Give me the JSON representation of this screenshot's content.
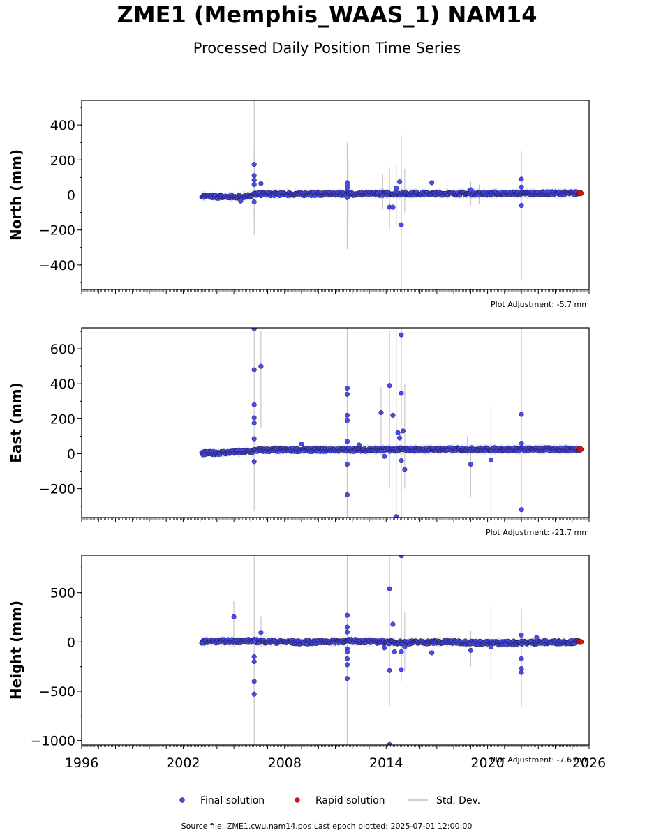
{
  "header": {
    "title": "ZME1 (Memphis_WAAS_1) NAM14",
    "subtitle": "Processed Daily Position Time Series"
  },
  "legend": {
    "final": "Final solution",
    "rapid": "Rapid solution",
    "std": "Std. Dev."
  },
  "footer": {
    "source": "Source file: ZME1.cwu.nam14.pos  Last epoch plotted: 2025-07-01 12:00:00"
  },
  "colors": {
    "final": "#4a4af0",
    "rapid": "#e01010",
    "stddev": "#bdbdbd"
  },
  "chart_data": [
    {
      "type": "scatter",
      "ylabel": "North (mm)",
      "adjustment": "Plot Adjustment: -5.7 mm",
      "xlim": [
        1996,
        2026
      ],
      "ylim": [
        -540,
        540
      ],
      "yticks": [
        -400,
        -200,
        0,
        200,
        400
      ],
      "yticklabels": [
        "−400",
        "−200",
        "0",
        "200",
        "400"
      ],
      "baseline": [
        [
          2003.1,
          -8
        ],
        [
          2005.0,
          -12
        ],
        [
          2006.0,
          -3
        ],
        [
          2006.3,
          5
        ],
        [
          2010.0,
          6
        ],
        [
          2015.0,
          8
        ],
        [
          2020.0,
          8
        ],
        [
          2025.4,
          10
        ]
      ],
      "outliers": [
        [
          2005.4,
          -35
        ],
        [
          2006.2,
          175
        ],
        [
          2006.2,
          110
        ],
        [
          2006.2,
          85
        ],
        [
          2006.2,
          60
        ],
        [
          2006.2,
          -40
        ],
        [
          2006.6,
          65
        ],
        [
          2011.7,
          70
        ],
        [
          2011.7,
          55
        ],
        [
          2011.7,
          40
        ],
        [
          2011.7,
          -15
        ],
        [
          2014.2,
          -70
        ],
        [
          2014.4,
          -70
        ],
        [
          2014.6,
          40
        ],
        [
          2014.8,
          75
        ],
        [
          2014.9,
          -170
        ],
        [
          2016.7,
          70
        ],
        [
          2019.0,
          30
        ],
        [
          2022.0,
          90
        ],
        [
          2022.0,
          45
        ],
        [
          2022.0,
          -60
        ]
      ],
      "rapid": [
        [
          2025.4,
          10
        ],
        [
          2025.5,
          10
        ]
      ],
      "stddev": [
        [
          2006.2,
          -230,
          540
        ],
        [
          2006.25,
          -150,
          270
        ],
        [
          2011.7,
          -310,
          300
        ],
        [
          2011.75,
          -150,
          200
        ],
        [
          2013.8,
          -80,
          120
        ],
        [
          2014.2,
          -200,
          160
        ],
        [
          2014.6,
          -180,
          180
        ],
        [
          2014.9,
          -540,
          340
        ],
        [
          2015.1,
          -100,
          150
        ],
        [
          2022.0,
          -490,
          250
        ],
        [
          2019.0,
          -60,
          80
        ],
        [
          2019.5,
          -50,
          60
        ]
      ]
    },
    {
      "type": "scatter",
      "ylabel": "East (mm)",
      "adjustment": "Plot Adjustment: -21.7 mm",
      "xlim": [
        1996,
        2026
      ],
      "ylim": [
        -365,
        720
      ],
      "yticks": [
        -200,
        0,
        200,
        400,
        600
      ],
      "yticklabels": [
        "−200",
        "0",
        "200",
        "400",
        "600"
      ],
      "baseline": [
        [
          2003.1,
          2
        ],
        [
          2004.0,
          5
        ],
        [
          2006.0,
          12
        ],
        [
          2006.3,
          20
        ],
        [
          2010.0,
          22
        ],
        [
          2015.0,
          24
        ],
        [
          2020.0,
          25
        ],
        [
          2025.4,
          25
        ]
      ],
      "outliers": [
        [
          2006.2,
          715
        ],
        [
          2006.2,
          480
        ],
        [
          2006.2,
          280
        ],
        [
          2006.2,
          205
        ],
        [
          2006.2,
          175
        ],
        [
          2006.2,
          85
        ],
        [
          2006.2,
          -45
        ],
        [
          2006.6,
          500
        ],
        [
          2009.0,
          55
        ],
        [
          2011.7,
          375
        ],
        [
          2011.7,
          340
        ],
        [
          2011.7,
          220
        ],
        [
          2011.7,
          190
        ],
        [
          2011.7,
          70
        ],
        [
          2011.7,
          -60
        ],
        [
          2011.7,
          -235
        ],
        [
          2012.4,
          50
        ],
        [
          2013.7,
          235
        ],
        [
          2013.9,
          -15
        ],
        [
          2014.2,
          390
        ],
        [
          2014.4,
          220
        ],
        [
          2014.6,
          -360
        ],
        [
          2014.7,
          120
        ],
        [
          2014.8,
          90
        ],
        [
          2014.9,
          680
        ],
        [
          2014.9,
          345
        ],
        [
          2014.9,
          -40
        ],
        [
          2015.1,
          -90
        ],
        [
          2015.0,
          130
        ],
        [
          2019.0,
          -60
        ],
        [
          2020.2,
          -35
        ],
        [
          2022.0,
          225
        ],
        [
          2022.0,
          60
        ],
        [
          2022.0,
          -320
        ]
      ],
      "rapid": [
        [
          2025.4,
          25
        ],
        [
          2025.5,
          25
        ]
      ],
      "stddev": [
        [
          2006.2,
          -330,
          720
        ],
        [
          2006.6,
          150,
          700
        ],
        [
          2011.7,
          -365,
          720
        ],
        [
          2013.7,
          -10,
          380
        ],
        [
          2014.2,
          -200,
          700
        ],
        [
          2014.6,
          -365,
          720
        ],
        [
          2014.9,
          -365,
          720
        ],
        [
          2015.1,
          -200,
          400
        ],
        [
          2018.8,
          -10,
          100
        ],
        [
          2019.0,
          -250,
          50
        ],
        [
          2020.2,
          -350,
          270
        ],
        [
          2022.0,
          -365,
          720
        ]
      ]
    },
    {
      "type": "scatter",
      "ylabel": "Height (mm)",
      "adjustment": "Plot Adjustment: -7.6 mm",
      "xlim": [
        1996,
        2026
      ],
      "ylim": [
        -1045,
        880
      ],
      "yticks": [
        -1000,
        -500,
        0,
        500
      ],
      "yticklabels": [
        "−1000",
        "−500",
        "0",
        "500"
      ],
      "xticks": [
        1996,
        2002,
        2008,
        2014,
        2020,
        2026
      ],
      "baseline": [
        [
          2003.1,
          5
        ],
        [
          2006.0,
          10
        ],
        [
          2009.0,
          -5
        ],
        [
          2012.0,
          10
        ],
        [
          2015.0,
          -5
        ],
        [
          2018.0,
          0
        ],
        [
          2020.0,
          -10
        ],
        [
          2025.4,
          0
        ]
      ],
      "outliers": [
        [
          2005.0,
          255
        ],
        [
          2006.2,
          -150
        ],
        [
          2006.2,
          -200
        ],
        [
          2006.2,
          -400
        ],
        [
          2006.2,
          -530
        ],
        [
          2006.2,
          0
        ],
        [
          2006.6,
          95
        ],
        [
          2011.7,
          270
        ],
        [
          2011.7,
          150
        ],
        [
          2011.7,
          100
        ],
        [
          2011.7,
          -70
        ],
        [
          2011.7,
          -100
        ],
        [
          2011.7,
          -170
        ],
        [
          2011.7,
          -230
        ],
        [
          2011.7,
          -370
        ],
        [
          2013.9,
          -60
        ],
        [
          2014.2,
          540
        ],
        [
          2014.2,
          -290
        ],
        [
          2014.2,
          -1040
        ],
        [
          2014.4,
          180
        ],
        [
          2014.5,
          -100
        ],
        [
          2014.9,
          875
        ],
        [
          2014.9,
          -100
        ],
        [
          2014.9,
          -280
        ],
        [
          2015.1,
          -50
        ],
        [
          2016.7,
          -110
        ],
        [
          2019.0,
          -85
        ],
        [
          2020.2,
          -50
        ],
        [
          2022.0,
          70
        ],
        [
          2022.0,
          -170
        ],
        [
          2022.0,
          -270
        ],
        [
          2022.0,
          -310
        ],
        [
          2022.9,
          45
        ]
      ],
      "rapid": [
        [
          2025.4,
          0
        ],
        [
          2025.5,
          0
        ]
      ],
      "stddev": [
        [
          2005.0,
          -50,
          420
        ],
        [
          2006.2,
          -1045,
          880
        ],
        [
          2006.6,
          -50,
          260
        ],
        [
          2011.7,
          -1045,
          880
        ],
        [
          2014.2,
          -650,
          880
        ],
        [
          2014.9,
          -400,
          880
        ],
        [
          2015.1,
          -300,
          300
        ],
        [
          2019.0,
          -250,
          110
        ],
        [
          2020.2,
          -390,
          380
        ],
        [
          2022.0,
          -660,
          340
        ]
      ]
    }
  ]
}
